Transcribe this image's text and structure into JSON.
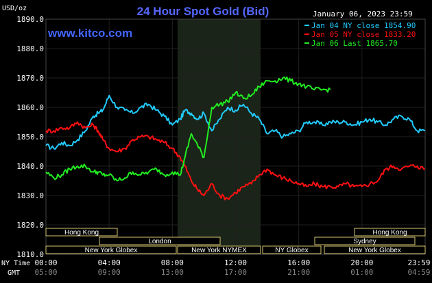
{
  "header": {
    "unit_label": "USD/oz",
    "title": "24 Hour Spot Gold (Bid)",
    "datetime": "January 06, 2023 23:59",
    "site": "www.kitco.com"
  },
  "colors": {
    "background": "#000000",
    "plot_bg": "#000000",
    "nymex_band": "#1b2418",
    "grid": "#1f1f1f",
    "axis_text": "#ffffff",
    "title": "#5566ff",
    "site": "#4466ff",
    "market_box_bg": "#000000",
    "market_box_border": "#d8c870",
    "market_text": "#ffffff"
  },
  "footer": {
    "ny_time_label": "NY Time",
    "gmt_label": "GMT"
  },
  "markets": [
    {
      "name": "Hong Kong"
    },
    {
      "name": "Hong Kong"
    },
    {
      "name": "London"
    },
    {
      "name": "Sydney"
    },
    {
      "name": "New York Globex"
    },
    {
      "name": "New York NYMEX"
    },
    {
      "name": "NY Globex"
    },
    {
      "name": "New York Globex"
    }
  ],
  "chart_data": {
    "type": "line",
    "title": "24 Hour Spot Gold (Bid)",
    "ylabel": "USD/oz",
    "ylim": [
      1810,
      1890
    ],
    "y_ticks": [
      "1890.0",
      "1880.0",
      "1870.0",
      "1860.0",
      "1850.0",
      "1840.0",
      "1830.0",
      "1820.0",
      "1810.0"
    ],
    "x_ticks_ny": [
      "00:00",
      "04:00",
      "08:00",
      "12:00",
      "16:00",
      "20:00",
      "23:59"
    ],
    "x_ticks_gmt": [
      "05:00",
      "09:00",
      "13:00",
      "17:00",
      "21:00",
      "01:00",
      "04:59"
    ],
    "xlim_hours": [
      0,
      24
    ],
    "grid": true,
    "legend_position": "top-right",
    "series": [
      {
        "name": "Jan 04 NY close 1854.90",
        "color": "#22ccff",
        "x": [
          0,
          0.5,
          1.0,
          1.5,
          2.0,
          2.5,
          3.0,
          3.3,
          3.6,
          4.0,
          4.5,
          5.0,
          5.5,
          6.0,
          6.5,
          7.0,
          7.5,
          8.0,
          8.5,
          8.8,
          9.2,
          9.6,
          10.0,
          10.5,
          11.0,
          11.5,
          12.0,
          12.5,
          13.0,
          13.5,
          14.0,
          14.5,
          15.0,
          15.5,
          16.0,
          16.5,
          17.0,
          17.5,
          18.0,
          18.5,
          19.0,
          19.5,
          20.0,
          20.5,
          21.0,
          21.5,
          22.0,
          22.5,
          23.0,
          23.5,
          23.99
        ],
        "values": [
          1847,
          1846,
          1848,
          1847,
          1849,
          1852,
          1857,
          1858,
          1859,
          1864,
          1860,
          1859,
          1858,
          1860,
          1861,
          1859,
          1857,
          1854,
          1856,
          1859,
          1858,
          1856,
          1858,
          1852,
          1856,
          1860,
          1859,
          1861,
          1858,
          1856,
          1851,
          1852,
          1850,
          1851,
          1852,
          1855,
          1855,
          1854,
          1855,
          1855,
          1855,
          1854,
          1855,
          1856,
          1855,
          1854,
          1856,
          1857,
          1856,
          1852,
          1852
        ]
      },
      {
        "name": "Jan 05 NY close 1833.20",
        "color": "#ff1111",
        "x": [
          0,
          0.5,
          1.0,
          1.5,
          2.0,
          2.5,
          3.0,
          3.3,
          3.6,
          4.0,
          4.5,
          5.0,
          5.5,
          6.0,
          6.5,
          7.0,
          7.5,
          8.0,
          8.5,
          8.8,
          9.2,
          9.6,
          10.0,
          10.5,
          11.0,
          11.5,
          12.0,
          12.5,
          13.0,
          13.5,
          14.0,
          14.5,
          15.0,
          15.5,
          16.0,
          16.5,
          17.0,
          17.5,
          18.0,
          18.5,
          19.0,
          19.5,
          20.0,
          20.5,
          21.0,
          21.5,
          22.0,
          22.5,
          23.0,
          23.5,
          23.99
        ],
        "values": [
          1852,
          1852,
          1853,
          1853,
          1855,
          1853,
          1854,
          1852,
          1849,
          1846,
          1845,
          1846,
          1849,
          1850,
          1850,
          1849,
          1848,
          1846,
          1843,
          1840,
          1835,
          1832,
          1830,
          1834,
          1830,
          1829,
          1831,
          1833,
          1834,
          1837,
          1839,
          1837,
          1836,
          1835,
          1834,
          1833,
          1834,
          1833,
          1833,
          1833,
          1834,
          1833,
          1833,
          1834,
          1835,
          1839,
          1840,
          1839,
          1840,
          1840,
          1839
        ]
      },
      {
        "name": "Jan 06 Last 1865.70",
        "color": "#22ee22",
        "x": [
          0,
          0.5,
          1.0,
          1.5,
          2.0,
          2.5,
          3.0,
          3.3,
          3.6,
          4.0,
          4.5,
          5.0,
          5.5,
          6.0,
          6.5,
          7.0,
          7.5,
          8.0,
          8.5,
          8.8,
          9.2,
          9.6,
          10.0,
          10.5,
          11.0,
          11.5,
          12.0,
          12.5,
          13.0,
          13.5,
          14.0,
          14.5,
          15.0,
          15.5,
          16.0,
          16.5,
          17.0,
          17.5,
          18.0
        ],
        "values": [
          1838,
          1836,
          1837,
          1839,
          1840,
          1840,
          1838,
          1838,
          1837,
          1837,
          1835,
          1836,
          1838,
          1837,
          1838,
          1839,
          1837,
          1838,
          1837,
          1843,
          1851,
          1847,
          1843,
          1860,
          1861,
          1862,
          1865,
          1863,
          1864,
          1867,
          1869,
          1869,
          1870,
          1869,
          1868,
          1867,
          1866,
          1866,
          1866
        ]
      }
    ]
  }
}
